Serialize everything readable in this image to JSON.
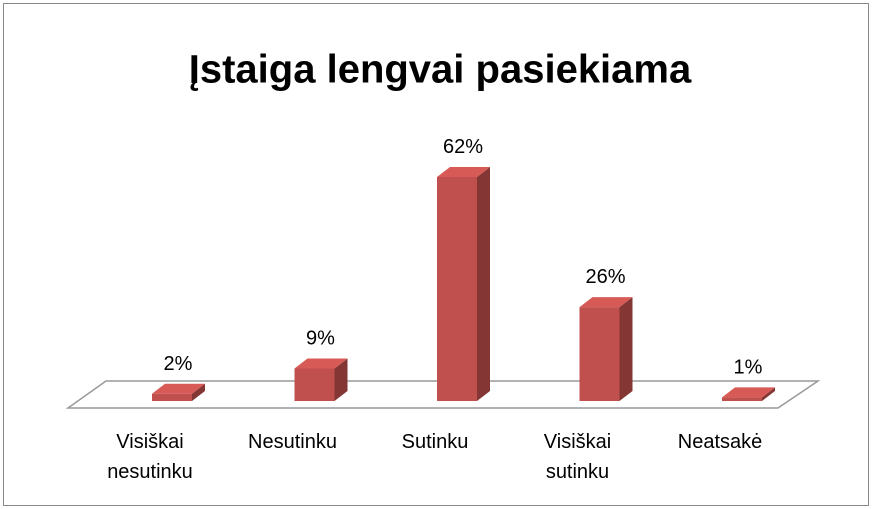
{
  "chart_data": {
    "type": "bar3d",
    "title": "Įstaiga lengvai pasiekiama",
    "categories": [
      "Visiškai nesutinku",
      "Nesutinku",
      "Sutinku",
      "Visiškai sutinku",
      "Neatsakė"
    ],
    "values": [
      2,
      9,
      62,
      26,
      1
    ],
    "value_labels": [
      "2%",
      "9%",
      "62%",
      "26%",
      "1%"
    ],
    "color": "#c0504d"
  }
}
